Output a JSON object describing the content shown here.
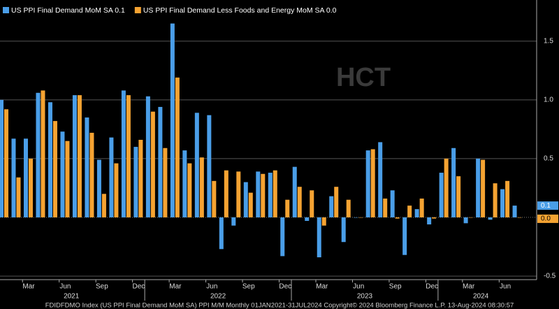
{
  "chart_data": {
    "type": "bar",
    "watermark": "HCT",
    "categories": [
      null,
      null,
      "Mar",
      null,
      null,
      "Jun",
      null,
      null,
      "Sep",
      null,
      null,
      "Dec",
      null,
      null,
      "Mar",
      null,
      null,
      "Jun",
      null,
      null,
      "Sep",
      null,
      null,
      "Dec",
      null,
      null,
      "Mar",
      null,
      null,
      "Jun",
      null,
      null,
      "Sep",
      null,
      null,
      "Dec",
      null,
      null,
      "Mar",
      null,
      null,
      "Jun",
      null
    ],
    "years": [
      "2021",
      "2022",
      "2023",
      "2024"
    ],
    "series": [
      {
        "name": "US PPI Final Demand MoM SA 0.1",
        "color": "#4a9ee8",
        "last_label": "0.1",
        "values": [
          1.0,
          0.67,
          0.67,
          1.06,
          0.98,
          0.73,
          1.04,
          0.85,
          0.49,
          0.68,
          1.08,
          0.6,
          1.03,
          0.94,
          1.65,
          0.57,
          0.89,
          0.87,
          -0.27,
          -0.07,
          0.3,
          0.39,
          0.38,
          -0.33,
          0.43,
          -0.03,
          -0.34,
          0.18,
          -0.21,
          0.0,
          0.57,
          0.64,
          0.23,
          -0.32,
          0.07,
          -0.06,
          0.38,
          0.59,
          -0.05,
          0.5,
          -0.02,
          0.24,
          0.1
        ]
      },
      {
        "name": "US PPI Final Demand Less Foods and Energy MoM SA 0.0",
        "color": "#f5a332",
        "last_label": "0.0",
        "values": [
          0.92,
          0.34,
          0.5,
          1.08,
          0.82,
          0.65,
          1.04,
          0.72,
          0.2,
          0.46,
          1.04,
          0.66,
          0.9,
          0.59,
          1.19,
          0.46,
          0.51,
          0.31,
          0.4,
          0.39,
          0.21,
          0.37,
          0.4,
          0.15,
          0.26,
          0.23,
          -0.07,
          0.26,
          0.15,
          0.0,
          0.58,
          0.16,
          -0.01,
          0.1,
          0.16,
          -0.01,
          0.5,
          0.35,
          0.0,
          0.49,
          0.29,
          0.31,
          0.0
        ]
      }
    ],
    "ylim": [
      -0.53,
      1.85
    ],
    "yticks": [
      -0.5,
      0.5,
      {
        "value": 1,
        "label": "1.0"
      },
      1.5
    ],
    "grid": true,
    "footer": "FDIDFDMO Index (US PPI Final Demand MoM SA) PPI M/M  Monthly 01JAN2021-31JUL2024   Copyright© 2024 Bloomberg Finance L.P.   13-Aug-2024 08:30:57"
  }
}
